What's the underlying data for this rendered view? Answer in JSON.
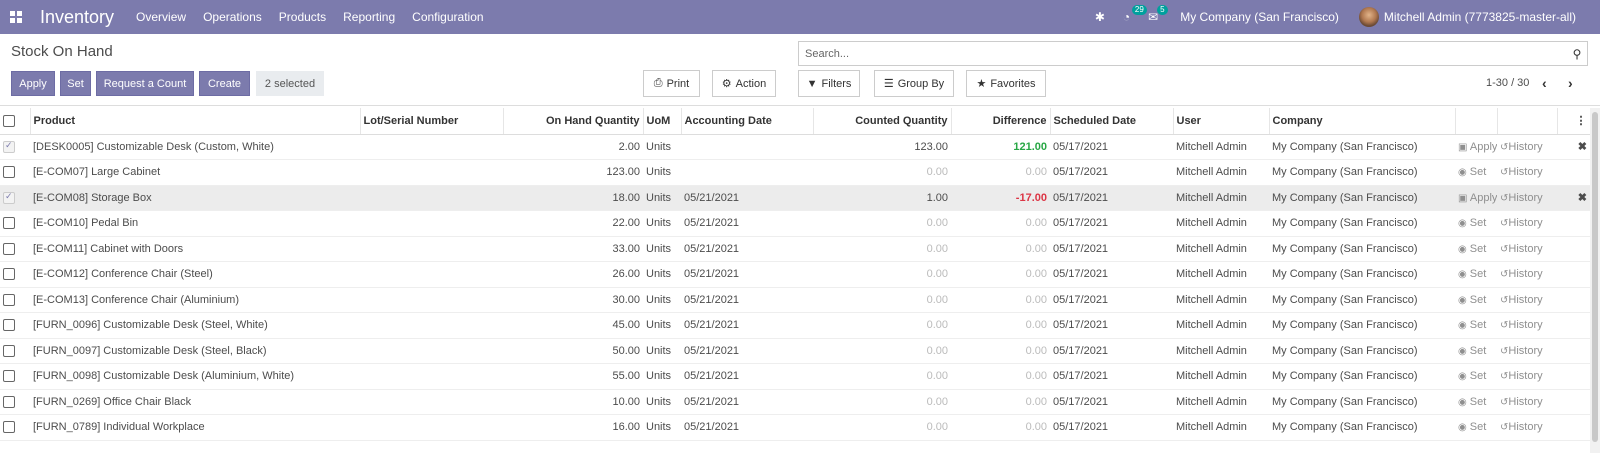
{
  "navbar": {
    "app_name": "Inventory",
    "menu": [
      "Overview",
      "Operations",
      "Products",
      "Reporting",
      "Configuration"
    ],
    "activity_count": "29",
    "message_count": "5",
    "company": "My Company (San Francisco)",
    "user": "Mitchell Admin (7773825-master-all)"
  },
  "page": {
    "title": "Stock On Hand",
    "search_placeholder": "Search...",
    "buttons": {
      "apply": "Apply",
      "set": "Set",
      "request_count": "Request a Count",
      "create": "Create",
      "selected": "2 selected",
      "print": "Print",
      "action": "Action",
      "filters": "Filters",
      "group_by": "Group By",
      "favorites": "Favorites"
    },
    "pager": "1-30 / 30"
  },
  "table": {
    "columns": [
      "Product",
      "Lot/Serial Number",
      "On Hand Quantity",
      "UoM",
      "Accounting Date",
      "Counted Quantity",
      "Difference",
      "Scheduled Date",
      "User",
      "Company"
    ],
    "rows": [
      {
        "product": "[DESK0005] Customizable Desk (Custom, White)",
        "lot": "",
        "qty": "2.00",
        "uom": "Units",
        "acc_date": "",
        "counted": "123.00",
        "diff": "121.00",
        "sched": "05/17/2021",
        "user": "Mitchell Admin",
        "company": "My Company (San Francisco)",
        "action": "Apply",
        "history": "History",
        "checked": true,
        "highlight": false,
        "diff_state": "pos",
        "counted_state": "set",
        "clear": true
      },
      {
        "product": "[E-COM07] Large Cabinet",
        "lot": "",
        "qty": "123.00",
        "uom": "Units",
        "acc_date": "",
        "counted": "0.00",
        "diff": "0.00",
        "sched": "05/17/2021",
        "user": "Mitchell Admin",
        "company": "My Company (San Francisco)",
        "action": "Set",
        "history": "History",
        "checked": false,
        "highlight": false,
        "diff_state": "zero",
        "counted_state": "muted",
        "clear": false
      },
      {
        "product": "[E-COM08] Storage Box",
        "lot": "",
        "qty": "18.00",
        "uom": "Units",
        "acc_date": "05/21/2021",
        "counted": "1.00",
        "diff": "-17.00",
        "sched": "05/17/2021",
        "user": "Mitchell Admin",
        "company": "My Company (San Francisco)",
        "action": "Apply",
        "history": "History",
        "checked": true,
        "highlight": true,
        "diff_state": "neg",
        "counted_state": "set",
        "clear": true
      },
      {
        "product": "[E-COM10] Pedal Bin",
        "lot": "",
        "qty": "22.00",
        "uom": "Units",
        "acc_date": "05/21/2021",
        "counted": "0.00",
        "diff": "0.00",
        "sched": "05/17/2021",
        "user": "Mitchell Admin",
        "company": "My Company (San Francisco)",
        "action": "Set",
        "history": "History",
        "checked": false,
        "highlight": false,
        "diff_state": "zero",
        "counted_state": "muted",
        "clear": false
      },
      {
        "product": "[E-COM11] Cabinet with Doors",
        "lot": "",
        "qty": "33.00",
        "uom": "Units",
        "acc_date": "05/21/2021",
        "counted": "0.00",
        "diff": "0.00",
        "sched": "05/17/2021",
        "user": "Mitchell Admin",
        "company": "My Company (San Francisco)",
        "action": "Set",
        "history": "History",
        "checked": false,
        "highlight": false,
        "diff_state": "zero",
        "counted_state": "muted",
        "clear": false
      },
      {
        "product": "[E-COM12] Conference Chair (Steel)",
        "lot": "",
        "qty": "26.00",
        "uom": "Units",
        "acc_date": "05/21/2021",
        "counted": "0.00",
        "diff": "0.00",
        "sched": "05/17/2021",
        "user": "Mitchell Admin",
        "company": "My Company (San Francisco)",
        "action": "Set",
        "history": "History",
        "checked": false,
        "highlight": false,
        "diff_state": "zero",
        "counted_state": "muted",
        "clear": false
      },
      {
        "product": "[E-COM13] Conference Chair (Aluminium)",
        "lot": "",
        "qty": "30.00",
        "uom": "Units",
        "acc_date": "05/21/2021",
        "counted": "0.00",
        "diff": "0.00",
        "sched": "05/17/2021",
        "user": "Mitchell Admin",
        "company": "My Company (San Francisco)",
        "action": "Set",
        "history": "History",
        "checked": false,
        "highlight": false,
        "diff_state": "zero",
        "counted_state": "muted",
        "clear": false
      },
      {
        "product": "[FURN_0096] Customizable Desk (Steel, White)",
        "lot": "",
        "qty": "45.00",
        "uom": "Units",
        "acc_date": "05/21/2021",
        "counted": "0.00",
        "diff": "0.00",
        "sched": "05/17/2021",
        "user": "Mitchell Admin",
        "company": "My Company (San Francisco)",
        "action": "Set",
        "history": "History",
        "checked": false,
        "highlight": false,
        "diff_state": "zero",
        "counted_state": "muted",
        "clear": false
      },
      {
        "product": "[FURN_0097] Customizable Desk (Steel, Black)",
        "lot": "",
        "qty": "50.00",
        "uom": "Units",
        "acc_date": "05/21/2021",
        "counted": "0.00",
        "diff": "0.00",
        "sched": "05/17/2021",
        "user": "Mitchell Admin",
        "company": "My Company (San Francisco)",
        "action": "Set",
        "history": "History",
        "checked": false,
        "highlight": false,
        "diff_state": "zero",
        "counted_state": "muted",
        "clear": false
      },
      {
        "product": "[FURN_0098] Customizable Desk (Aluminium, White)",
        "lot": "",
        "qty": "55.00",
        "uom": "Units",
        "acc_date": "05/21/2021",
        "counted": "0.00",
        "diff": "0.00",
        "sched": "05/17/2021",
        "user": "Mitchell Admin",
        "company": "My Company (San Francisco)",
        "action": "Set",
        "history": "History",
        "checked": false,
        "highlight": false,
        "diff_state": "zero",
        "counted_state": "muted",
        "clear": false
      },
      {
        "product": "[FURN_0269] Office Chair Black",
        "lot": "",
        "qty": "10.00",
        "uom": "Units",
        "acc_date": "05/21/2021",
        "counted": "0.00",
        "diff": "0.00",
        "sched": "05/17/2021",
        "user": "Mitchell Admin",
        "company": "My Company (San Francisco)",
        "action": "Set",
        "history": "History",
        "checked": false,
        "highlight": false,
        "diff_state": "zero",
        "counted_state": "muted",
        "clear": false
      },
      {
        "product": "[FURN_0789] Individual Workplace",
        "lot": "",
        "qty": "16.00",
        "uom": "Units",
        "acc_date": "05/21/2021",
        "counted": "0.00",
        "diff": "0.00",
        "sched": "05/17/2021",
        "user": "Mitchell Admin",
        "company": "My Company (San Francisco)",
        "action": "Set",
        "history": "History",
        "checked": false,
        "highlight": false,
        "diff_state": "zero",
        "counted_state": "muted",
        "clear": false
      }
    ]
  },
  "colors": {
    "brand": "#7c7bad",
    "positive": "#28a745",
    "negative": "#dc3545",
    "badge": "#00a09d"
  }
}
